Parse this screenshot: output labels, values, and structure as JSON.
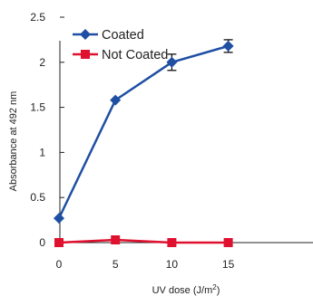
{
  "chart_data": {
    "type": "line",
    "xlabel": "UV dose (J/m²)",
    "ylabel": "Absorbance at 492 nm",
    "xlim": [
      0,
      15
    ],
    "ylim": [
      0,
      2.5
    ],
    "x_ticks": [
      "0",
      "5",
      "10",
      "15"
    ],
    "y_ticks": [
      "0",
      "0.5",
      "1",
      "1.5",
      "2",
      "2.5"
    ],
    "x_tick_values": [
      0,
      5,
      10,
      15
    ],
    "y_tick_values": [
      0,
      0.5,
      1,
      1.5,
      2,
      2.5
    ],
    "grid": false,
    "legend_position": "top-left",
    "series": [
      {
        "name": "Coated",
        "color": "#1f4fa3",
        "marker": "diamond",
        "x": [
          0,
          5,
          10,
          15
        ],
        "y": [
          0.27,
          1.58,
          2.0,
          2.18
        ],
        "error": [
          0.0,
          0.0,
          0.09,
          0.07
        ]
      },
      {
        "name": "Not Coated",
        "color": "#e0102f",
        "marker": "square",
        "x": [
          0,
          5,
          10,
          15
        ],
        "y": [
          0.0,
          0.03,
          0.0,
          0.0
        ],
        "error": [
          0.0,
          0.0,
          0.0,
          0.0
        ]
      }
    ]
  }
}
